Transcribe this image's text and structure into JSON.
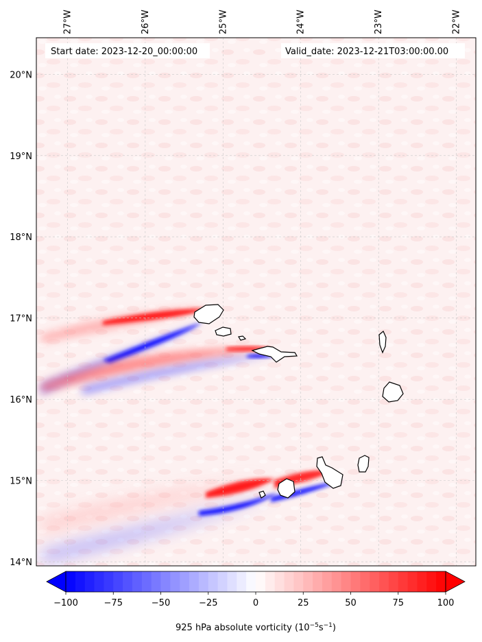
{
  "map": {
    "title_left": "Start date: 2023-12-20_00:00:00",
    "title_right": "Valid_date: 2023-12-21T03:00:00.00",
    "lon_labels": [
      "27°W",
      "26°W",
      "25°W",
      "24°W",
      "23°W",
      "22°W"
    ],
    "lat_labels": [
      "20°N",
      "19°N",
      "18°N",
      "17°N",
      "16°N",
      "15°N",
      "14°N"
    ],
    "lon_values": [
      -27,
      -26,
      -25,
      -24,
      -23,
      -22
    ],
    "lat_values": [
      20,
      19,
      18,
      17,
      16,
      15,
      14
    ],
    "extent": {
      "lon_min": -27.4,
      "lon_max": -21.75,
      "lat_min": 13.95,
      "lat_max": 20.45
    },
    "field": "925 hPa absolute vorticity",
    "islands": [
      "Santo Antão",
      "São Vicente",
      "Santa Luzia",
      "São Nicolau",
      "Sal",
      "Boa Vista",
      "Maio",
      "Santiago",
      "Fogo",
      "Brava"
    ]
  },
  "colorbar": {
    "label_prefix": "925 hPa absolute vorticity (10",
    "label_exp1": "−5",
    "label_mid": "s",
    "label_exp2": "−1",
    "label_suffix": ")",
    "min": -100,
    "max": 100,
    "levels": 40,
    "ticks": [
      -100,
      -75,
      -50,
      -25,
      0,
      25,
      50,
      75,
      100
    ],
    "tick_labels": [
      "−100",
      "−75",
      "−50",
      "−25",
      "0",
      "25",
      "50",
      "75",
      "100"
    ],
    "colormap": "bwr",
    "color_low": "#0000ff",
    "color_mid": "#ffffff",
    "color_high": "#ff0000"
  }
}
